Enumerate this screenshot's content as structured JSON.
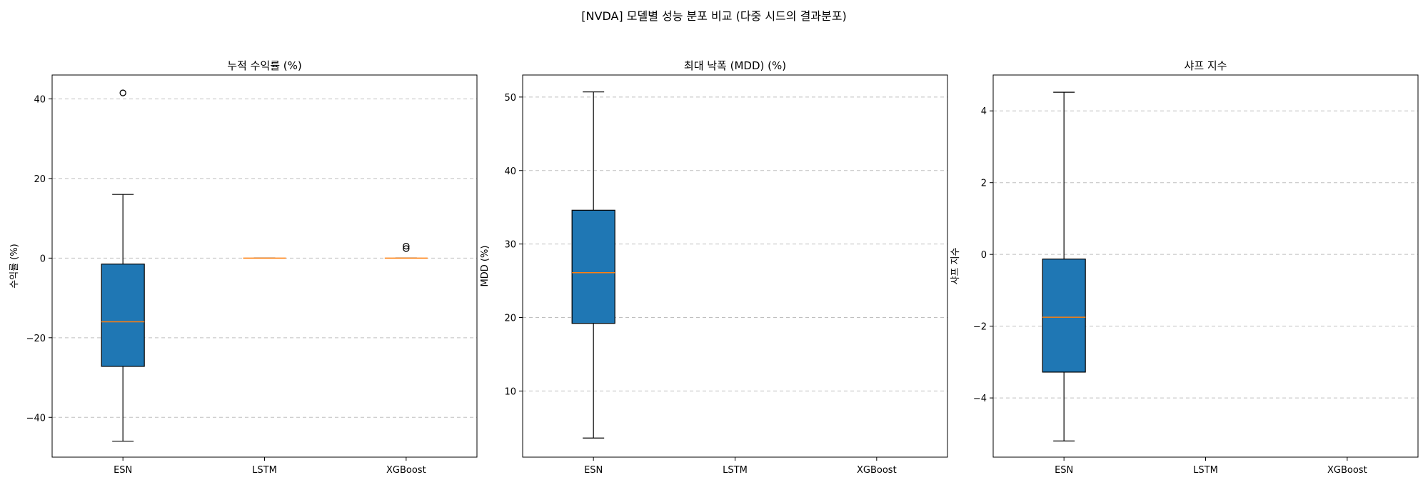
{
  "figure": {
    "suptitle": "[NVDA] 모델별 성능 분포 비교 (다중 시드의 결과분포)"
  },
  "chart_data": [
    {
      "type": "box",
      "title": "누적 수익률 (%)",
      "ylabel": "수익률 (%)",
      "xlabel": "",
      "ylim": [
        -50,
        46
      ],
      "yticks": [
        -40,
        -20,
        0,
        20,
        40
      ],
      "grid": "y-dashed",
      "categories": [
        "ESN",
        "LSTM",
        "XGBoost"
      ],
      "boxes": [
        {
          "name": "ESN",
          "whislo": -46,
          "q1": -27.2,
          "med": -16,
          "q3": -1.5,
          "whishi": 16,
          "fliers": [
            41.5
          ]
        },
        {
          "name": "LSTM",
          "whislo": 0,
          "q1": 0,
          "med": 0,
          "q3": 0,
          "whishi": 0,
          "fliers": []
        },
        {
          "name": "XGBoost",
          "whislo": 0,
          "q1": 0,
          "med": 0,
          "q3": 0,
          "whishi": 0,
          "fliers": [
            2.4,
            3.0
          ]
        }
      ]
    },
    {
      "type": "box",
      "title": "최대 낙폭 (MDD) (%)",
      "ylabel": "MDD (%)",
      "xlabel": "",
      "ylim": [
        1,
        53
      ],
      "yticks": [
        10,
        20,
        30,
        40,
        50
      ],
      "grid": "y-dashed",
      "categories": [
        "ESN",
        "LSTM",
        "XGBoost"
      ],
      "boxes": [
        {
          "name": "ESN",
          "whislo": 3.6,
          "q1": 19.2,
          "med": 26.1,
          "q3": 34.6,
          "whishi": 50.7,
          "fliers": []
        }
      ]
    },
    {
      "type": "box",
      "title": "샤프 지수",
      "ylabel": "샤프 지수",
      "xlabel": "",
      "ylim": [
        -5.65,
        5
      ],
      "yticks": [
        -4,
        -2,
        0,
        2,
        4
      ],
      "grid": "y-dashed",
      "categories": [
        "ESN",
        "LSTM",
        "XGBoost"
      ],
      "boxes": [
        {
          "name": "ESN",
          "whislo": -5.2,
          "q1": -3.28,
          "med": -1.75,
          "q3": -0.13,
          "whishi": 4.52,
          "fliers": []
        }
      ]
    }
  ],
  "colors": {
    "box_fill": "#1f77b4",
    "median": "#ff7f0e",
    "grid": "#b0b0b0",
    "edge": "#000000"
  }
}
